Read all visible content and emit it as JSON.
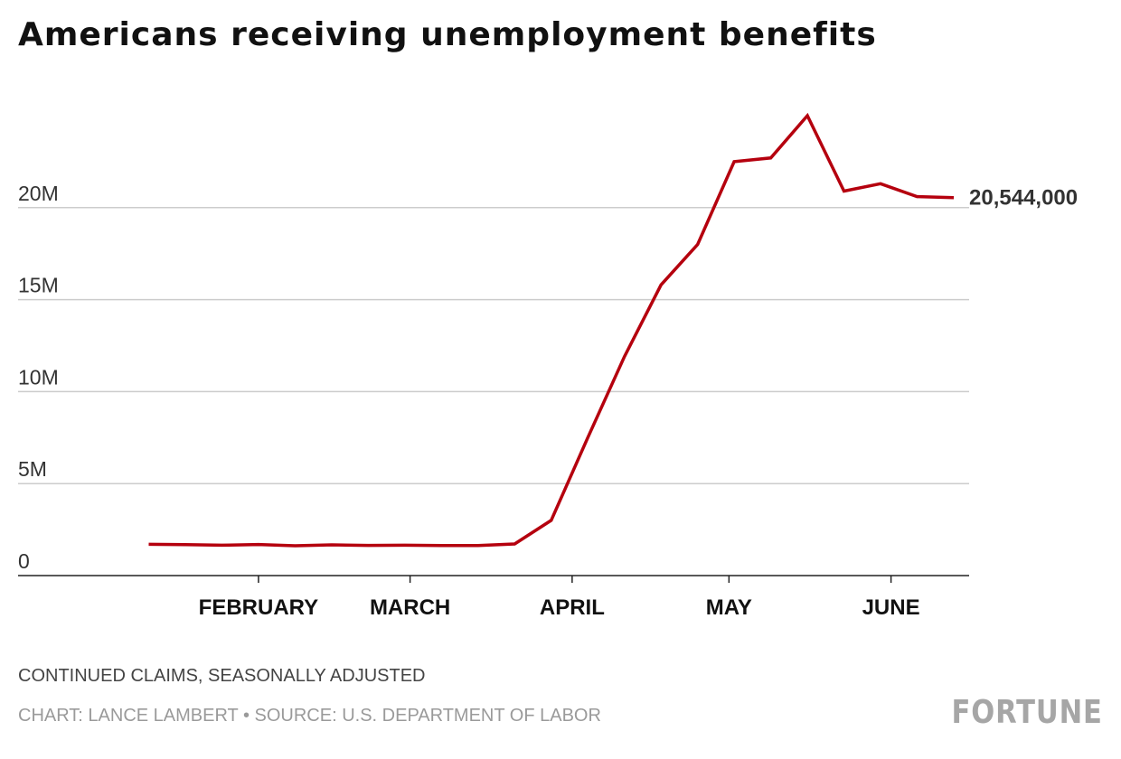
{
  "chart_data": {
    "type": "line",
    "title": "Americans receiving unemployment benefits",
    "subtitle": "CONTINUED CLAIMS, SEASONALLY ADJUSTED",
    "source": "CHART: LANCE LAMBERT • SOURCE: U.S. DEPARTMENT OF LABOR",
    "logo": "FORTUNE",
    "line_color": "#b5000e",
    "grid": true,
    "ylim": [
      0,
      25000000
    ],
    "yticks": [
      {
        "value": 0,
        "label": "0"
      },
      {
        "value": 5000000,
        "label": "5M"
      },
      {
        "value": 10000000,
        "label": "10M"
      },
      {
        "value": 15000000,
        "label": "15M"
      },
      {
        "value": 20000000,
        "label": "20M"
      }
    ],
    "xlim": [
      "2020-01-04",
      "2020-06-13"
    ],
    "xticks": [
      {
        "date": "2020-02-01",
        "label": "FEBRUARY"
      },
      {
        "date": "2020-03-01",
        "label": "MARCH"
      },
      {
        "date": "2020-04-01",
        "label": "APRIL"
      },
      {
        "date": "2020-05-01",
        "label": "MAY"
      },
      {
        "date": "2020-06-01",
        "label": "JUNE"
      }
    ],
    "series": [
      {
        "points": [
          {
            "x": "2020-01-11",
            "y": 1700000
          },
          {
            "x": "2020-01-18",
            "y": 1680000
          },
          {
            "x": "2020-01-25",
            "y": 1650000
          },
          {
            "x": "2020-02-01",
            "y": 1690000
          },
          {
            "x": "2020-02-08",
            "y": 1620000
          },
          {
            "x": "2020-02-15",
            "y": 1670000
          },
          {
            "x": "2020-02-22",
            "y": 1640000
          },
          {
            "x": "2020-02-29",
            "y": 1650000
          },
          {
            "x": "2020-03-07",
            "y": 1630000
          },
          {
            "x": "2020-03-14",
            "y": 1630000
          },
          {
            "x": "2020-03-21",
            "y": 1720000
          },
          {
            "x": "2020-03-28",
            "y": 3000000
          },
          {
            "x": "2020-04-04",
            "y": 7500000
          },
          {
            "x": "2020-04-11",
            "y": 11900000
          },
          {
            "x": "2020-04-18",
            "y": 15800000
          },
          {
            "x": "2020-04-25",
            "y": 18000000
          },
          {
            "x": "2020-05-02",
            "y": 22500000
          },
          {
            "x": "2020-05-09",
            "y": 22700000
          },
          {
            "x": "2020-05-16",
            "y": 25000000
          },
          {
            "x": "2020-05-23",
            "y": 20900000
          },
          {
            "x": "2020-05-30",
            "y": 21300000
          },
          {
            "x": "2020-06-06",
            "y": 20600000
          },
          {
            "x": "2020-06-13",
            "y": 20544000
          }
        ]
      }
    ],
    "end_label": "20,544,000"
  }
}
